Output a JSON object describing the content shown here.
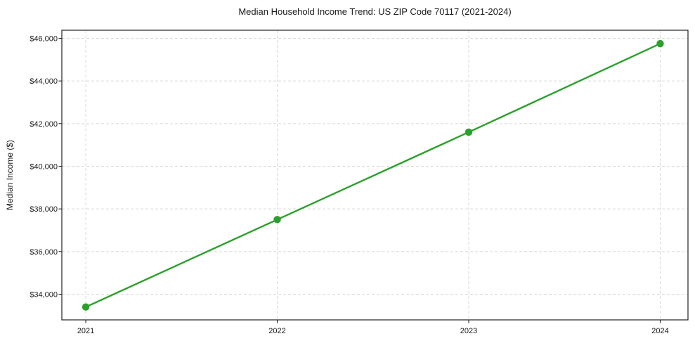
{
  "chart_data": {
    "type": "line",
    "title": "Median Household Income Trend: US ZIP Code 70117 (2021-2024)",
    "xlabel": "",
    "ylabel": "Median Income ($)",
    "x": [
      2021,
      2022,
      2023,
      2024
    ],
    "xtick_labels": [
      "2021",
      "2022",
      "2023",
      "2024"
    ],
    "values": [
      33400,
      37500,
      41600,
      45750
    ],
    "yticks": [
      34000,
      36000,
      38000,
      40000,
      42000,
      44000,
      46000
    ],
    "ytick_labels": [
      "$34,000",
      "$36,000",
      "$38,000",
      "$40,000",
      "$42,000",
      "$44,000",
      "$46,000"
    ],
    "xlim": [
      2020.875,
      2024.145
    ],
    "ylim": [
      32797,
      46379
    ],
    "grid": true,
    "grid_style": "dashed",
    "legend": false,
    "marker": "circle",
    "colors": {
      "line": "#2ca02c",
      "marker": "#2ca02c",
      "grid": "#d8d8d8",
      "axis": "#222222",
      "text": "#1a1a1a",
      "background": "#ffffff"
    }
  }
}
